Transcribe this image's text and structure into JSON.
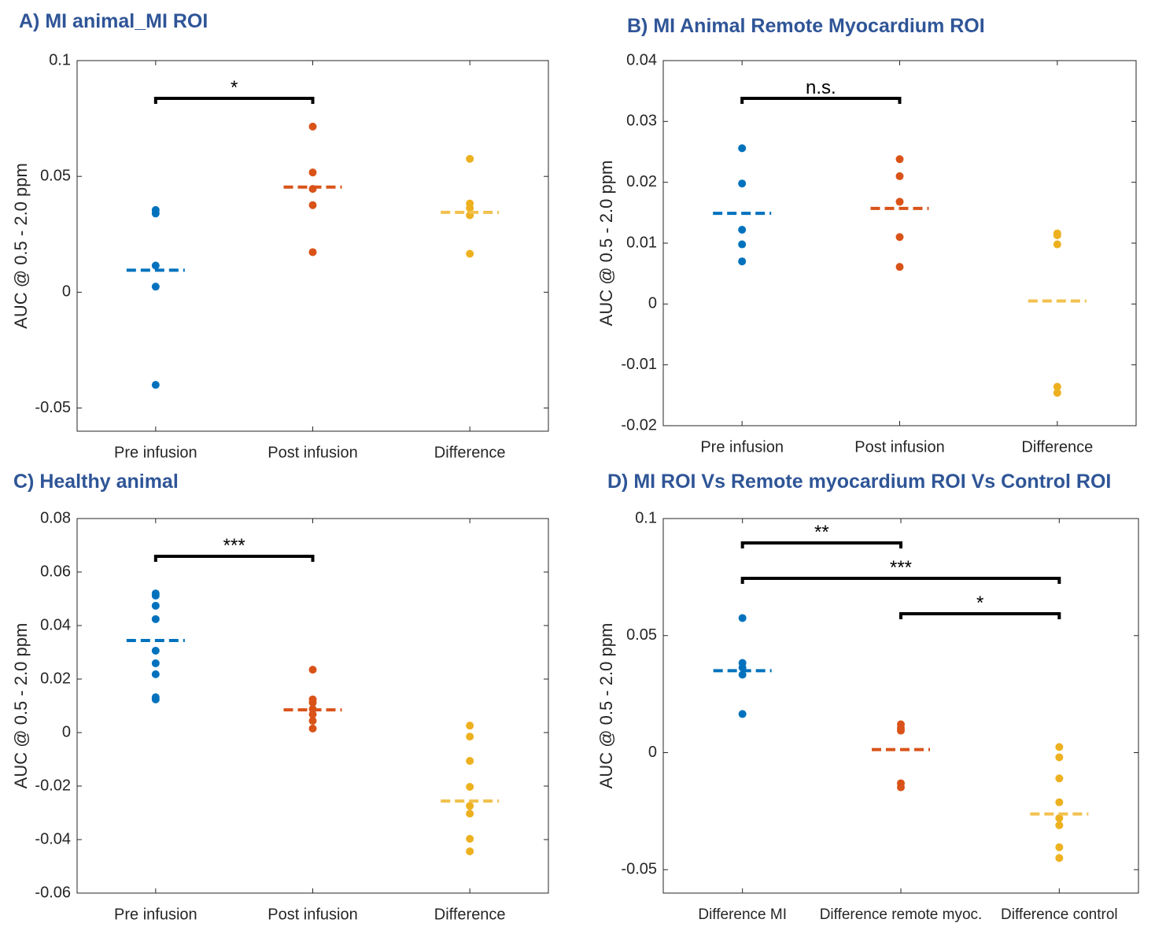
{
  "chart_data": [
    {
      "type": "strip",
      "title": "A) MI animal_MI ROI",
      "ylabel": "AUC @ 0.5 - 2.0 ppm",
      "categories": [
        "Pre infusion",
        "Post infusion",
        "Difference"
      ],
      "ylim": [
        -0.06,
        0.1
      ],
      "yticks": [
        -0.05,
        0,
        0.05,
        0.1
      ],
      "groups": [
        {
          "color": "#0072bd",
          "mean_color": "#0072bd",
          "points": [
            0.0355,
            0.034,
            0.0115,
            0.0024,
            -0.04
          ],
          "mean": 0.0095
        },
        {
          "color": "#d95319",
          "mean_color": "#d95319",
          "points": [
            0.0715,
            0.0517,
            0.0446,
            0.0376,
            0.0173
          ],
          "mean": 0.0454
        },
        {
          "color": "#edb120",
          "mean_color": "#f2c14e",
          "points": [
            0.0576,
            0.0383,
            0.0363,
            0.0332,
            0.0166
          ],
          "mean": 0.0345
        }
      ],
      "brackets": [
        {
          "from": 0,
          "to": 1,
          "label": "*"
        }
      ]
    },
    {
      "type": "strip",
      "title": "B) MI Animal Remote Myocardium ROI",
      "ylabel": "AUC @ 0.5 - 2.0 ppm",
      "categories": [
        "Pre infusion",
        "Post infusion",
        "Difference"
      ],
      "ylim": [
        -0.02,
        0.04
      ],
      "yticks": [
        -0.02,
        -0.01,
        0,
        0.01,
        0.02,
        0.03,
        0.04
      ],
      "groups": [
        {
          "color": "#0072bd",
          "mean_color": "#0072bd",
          "points": [
            0.0256,
            0.0198,
            0.0122,
            0.0098,
            0.007
          ],
          "mean": 0.0149
        },
        {
          "color": "#d95319",
          "mean_color": "#d95319",
          "points": [
            0.0238,
            0.021,
            0.0168,
            0.011,
            0.0061
          ],
          "mean": 0.0157
        },
        {
          "color": "#edb120",
          "mean_color": "#f2c14e",
          "points": [
            0.0116,
            0.0113,
            0.0098,
            -0.0136,
            -0.0146
          ],
          "mean": 0.0005
        }
      ],
      "brackets": [
        {
          "from": 0,
          "to": 1,
          "label": "n.s."
        }
      ]
    },
    {
      "type": "strip",
      "title": "C) Healthy animal",
      "ylabel": "AUC @ 0.5 - 2.0 ppm",
      "categories": [
        "Pre infusion",
        "Post infusion",
        "Difference"
      ],
      "ylim": [
        -0.06,
        0.08
      ],
      "yticks": [
        -0.06,
        -0.04,
        -0.02,
        0,
        0.02,
        0.04,
        0.06,
        0.08
      ],
      "groups": [
        {
          "color": "#0072bd",
          "mean_color": "#0072bd",
          "points": [
            0.052,
            0.0512,
            0.0474,
            0.0424,
            0.0306,
            0.0259,
            0.0218,
            0.0132,
            0.0124
          ],
          "mean": 0.0344
        },
        {
          "color": "#d95319",
          "mean_color": "#d95319",
          "points": [
            0.0235,
            0.0124,
            0.0112,
            0.0088,
            0.0068,
            0.0044,
            0.0015
          ],
          "mean": 0.0085
        },
        {
          "color": "#edb120",
          "mean_color": "#f2c14e",
          "points": [
            0.0026,
            -0.0015,
            -0.0106,
            -0.0203,
            -0.0274,
            -0.0303,
            -0.0397,
            -0.0444
          ],
          "mean": -0.0256
        }
      ],
      "brackets": [
        {
          "from": 0,
          "to": 1,
          "label": "***"
        }
      ]
    },
    {
      "type": "strip",
      "title": "D) MI ROI Vs Remote myocardium ROI Vs Control ROI",
      "ylabel": "AUC @ 0.5 - 2.0 ppm",
      "categories": [
        "Difference MI",
        "Difference remote myoc.",
        "Difference control"
      ],
      "ylim": [
        -0.06,
        0.1
      ],
      "yticks": [
        -0.05,
        0,
        0.05,
        0.1
      ],
      "groups": [
        {
          "color": "#0072bd",
          "mean_color": "#0072bd",
          "points": [
            0.0575,
            0.0383,
            0.0363,
            0.0333,
            0.0165
          ],
          "mean": 0.035
        },
        {
          "color": "#d95319",
          "mean_color": "#d95319",
          "points": [
            0.0121,
            0.0104,
            0.0094,
            -0.0131,
            -0.0148
          ],
          "mean": 0.0013
        },
        {
          "color": "#edb120",
          "mean_color": "#f2c14e",
          "points": [
            0.0024,
            -0.002,
            -0.011,
            -0.0212,
            -0.028,
            -0.031,
            -0.0404,
            -0.045
          ],
          "mean": -0.0262
        }
      ],
      "brackets": [
        {
          "from": 0,
          "to": 1,
          "label": "**"
        },
        {
          "from": 0,
          "to": 2,
          "label": "***"
        },
        {
          "from": 1,
          "to": 2,
          "label": "*"
        }
      ]
    }
  ]
}
